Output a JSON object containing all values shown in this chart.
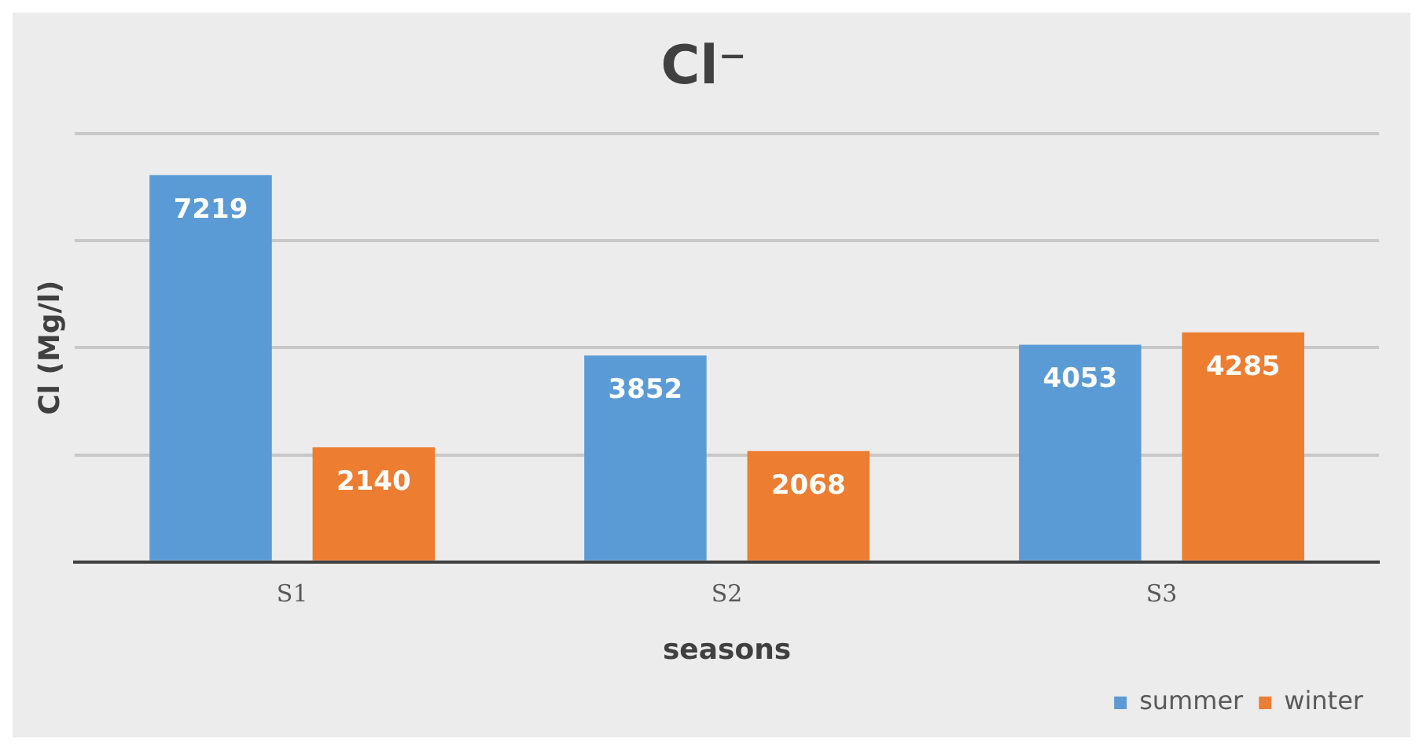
{
  "chart_data": {
    "type": "bar",
    "title": "Cl⁻",
    "xlabel": "seasons",
    "ylabel": "Cl (Mg/l)",
    "categories": [
      "S1",
      "S2",
      "S3"
    ],
    "series": [
      {
        "name": "summer",
        "color": "#5b9bd5",
        "values": [
          7219,
          3852,
          4053
        ]
      },
      {
        "name": "winter",
        "color": "#ed7d31",
        "values": [
          2140,
          2068,
          4285
        ]
      }
    ],
    "ylim": [
      0,
      8000
    ],
    "yticks": [
      0,
      {
        "value": 2000,
        "label": null
      },
      {
        "value": 4000,
        "label": null
      },
      {
        "value": 6000,
        "label": null
      },
      {
        "value": 8000,
        "label": null
      }
    ],
    "tick_labels": "x",
    "grid": "y",
    "legend": "bottom right",
    "data_labels": true
  }
}
